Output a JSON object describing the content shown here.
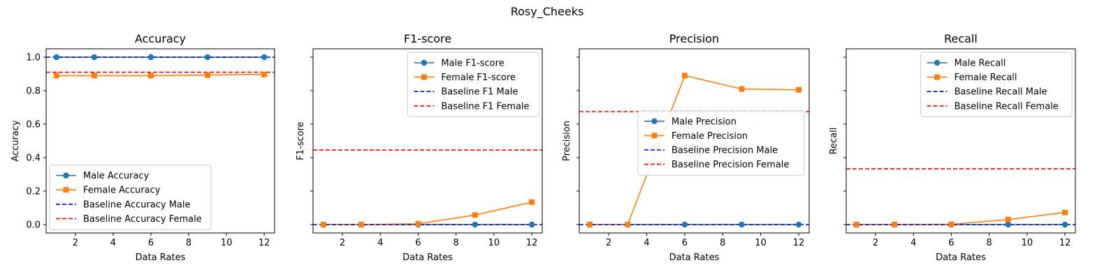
{
  "figure": {
    "suptitle": "Rosy_Cheeks"
  },
  "chart_data": [
    {
      "type": "line",
      "title": "Accuracy",
      "xlabel": "Data Rates",
      "ylabel": "Accuracy",
      "x": [
        1,
        3,
        6,
        9,
        12
      ],
      "xticks": [
        2,
        4,
        6,
        8,
        10,
        12
      ],
      "xlim": [
        0.45,
        12.55
      ],
      "ylim": [
        -0.05,
        1.05
      ],
      "yticks": [
        0.0,
        0.2,
        0.4,
        0.6,
        0.8,
        1.0
      ],
      "ytick_labels": [
        "0.0",
        "0.2",
        "0.4",
        "0.6",
        "0.8",
        "1.0"
      ],
      "grid": false,
      "legend_position": "lower-left",
      "series": [
        {
          "name": "Male Accuracy",
          "style": "solid",
          "marker": "circle",
          "color": "#1f77b4",
          "values": [
            1.0,
            1.0,
            1.0,
            1.0,
            1.0
          ]
        },
        {
          "name": "Female Accuracy",
          "style": "solid",
          "marker": "square",
          "color": "#ff7f0e",
          "values": [
            0.89,
            0.89,
            0.89,
            0.893,
            0.897
          ]
        },
        {
          "name": "Baseline Accuracy Male",
          "style": "dashed",
          "color": "#0000cc",
          "value": 1.0
        },
        {
          "name": "Baseline Accuracy Female",
          "style": "dashed",
          "color": "#ff0000",
          "value": 0.91
        }
      ]
    },
    {
      "type": "line",
      "title": "F1-score",
      "xlabel": "Data Rates",
      "ylabel": "F1-score",
      "x": [
        1,
        3,
        6,
        9,
        12
      ],
      "xticks": [
        2,
        4,
        6,
        8,
        10,
        12
      ],
      "xlim": [
        0.45,
        12.55
      ],
      "ylim": [
        -0.05,
        1.05
      ],
      "yticks": [
        0.0,
        0.2,
        0.4,
        0.6,
        0.8,
        1.0
      ],
      "ytick_labels": [],
      "grid": false,
      "legend_position": "upper-right",
      "series": [
        {
          "name": "Male F1-score",
          "style": "solid",
          "marker": "circle",
          "color": "#1f77b4",
          "values": [
            0.0,
            0.0,
            0.0,
            0.0,
            0.0
          ]
        },
        {
          "name": "Female F1-score",
          "style": "solid",
          "marker": "square",
          "color": "#ff7f0e",
          "values": [
            0.0,
            0.0,
            0.005,
            0.057,
            0.134
          ]
        },
        {
          "name": "Baseline F1 Male",
          "style": "dashed",
          "color": "#0000cc",
          "value": 0.0
        },
        {
          "name": "Baseline F1 Female",
          "style": "dashed",
          "color": "#ff0000",
          "value": 0.445
        }
      ]
    },
    {
      "type": "line",
      "title": "Precision",
      "xlabel": "Data Rates",
      "ylabel": "Precision",
      "x": [
        1,
        3,
        6,
        9,
        12
      ],
      "xticks": [
        2,
        4,
        6,
        8,
        10,
        12
      ],
      "xlim": [
        0.45,
        12.55
      ],
      "ylim": [
        -0.05,
        1.05
      ],
      "yticks": [
        0.0,
        0.2,
        0.4,
        0.6,
        0.8,
        1.0
      ],
      "ytick_labels": [],
      "grid": false,
      "legend_position": "center-right",
      "series": [
        {
          "name": "Male Precision",
          "style": "solid",
          "marker": "circle",
          "color": "#1f77b4",
          "values": [
            0.0,
            0.0,
            0.0,
            0.0,
            0.0
          ]
        },
        {
          "name": "Female Precision",
          "style": "solid",
          "marker": "square",
          "color": "#ff7f0e",
          "values": [
            0.0,
            0.0,
            0.89,
            0.81,
            0.805
          ]
        },
        {
          "name": "Baseline Precision Male",
          "style": "dashed",
          "color": "#0000cc",
          "value": 0.0
        },
        {
          "name": "Baseline Precision Female",
          "style": "dashed",
          "color": "#ff0000",
          "value": 0.675
        }
      ]
    },
    {
      "type": "line",
      "title": "Recall",
      "xlabel": "Data Rates",
      "ylabel": "Recall",
      "x": [
        1,
        3,
        6,
        9,
        12
      ],
      "xticks": [
        2,
        4,
        6,
        8,
        10,
        12
      ],
      "xlim": [
        0.45,
        12.55
      ],
      "ylim": [
        -0.05,
        1.05
      ],
      "yticks": [
        0.0,
        0.2,
        0.4,
        0.6,
        0.8,
        1.0
      ],
      "ytick_labels": [],
      "grid": false,
      "legend_position": "upper-right",
      "series": [
        {
          "name": "Male Recall",
          "style": "solid",
          "marker": "circle",
          "color": "#1f77b4",
          "values": [
            0.0,
            0.0,
            0.0,
            0.0,
            0.0
          ]
        },
        {
          "name": "Female Recall",
          "style": "solid",
          "marker": "square",
          "color": "#ff7f0e",
          "values": [
            0.0,
            0.0,
            0.002,
            0.03,
            0.072
          ]
        },
        {
          "name": "Baseline Recall Male",
          "style": "dashed",
          "color": "#0000cc",
          "value": 0.0
        },
        {
          "name": "Baseline Recall Female",
          "style": "dashed",
          "color": "#ff0000",
          "value": 0.333
        }
      ]
    }
  ]
}
